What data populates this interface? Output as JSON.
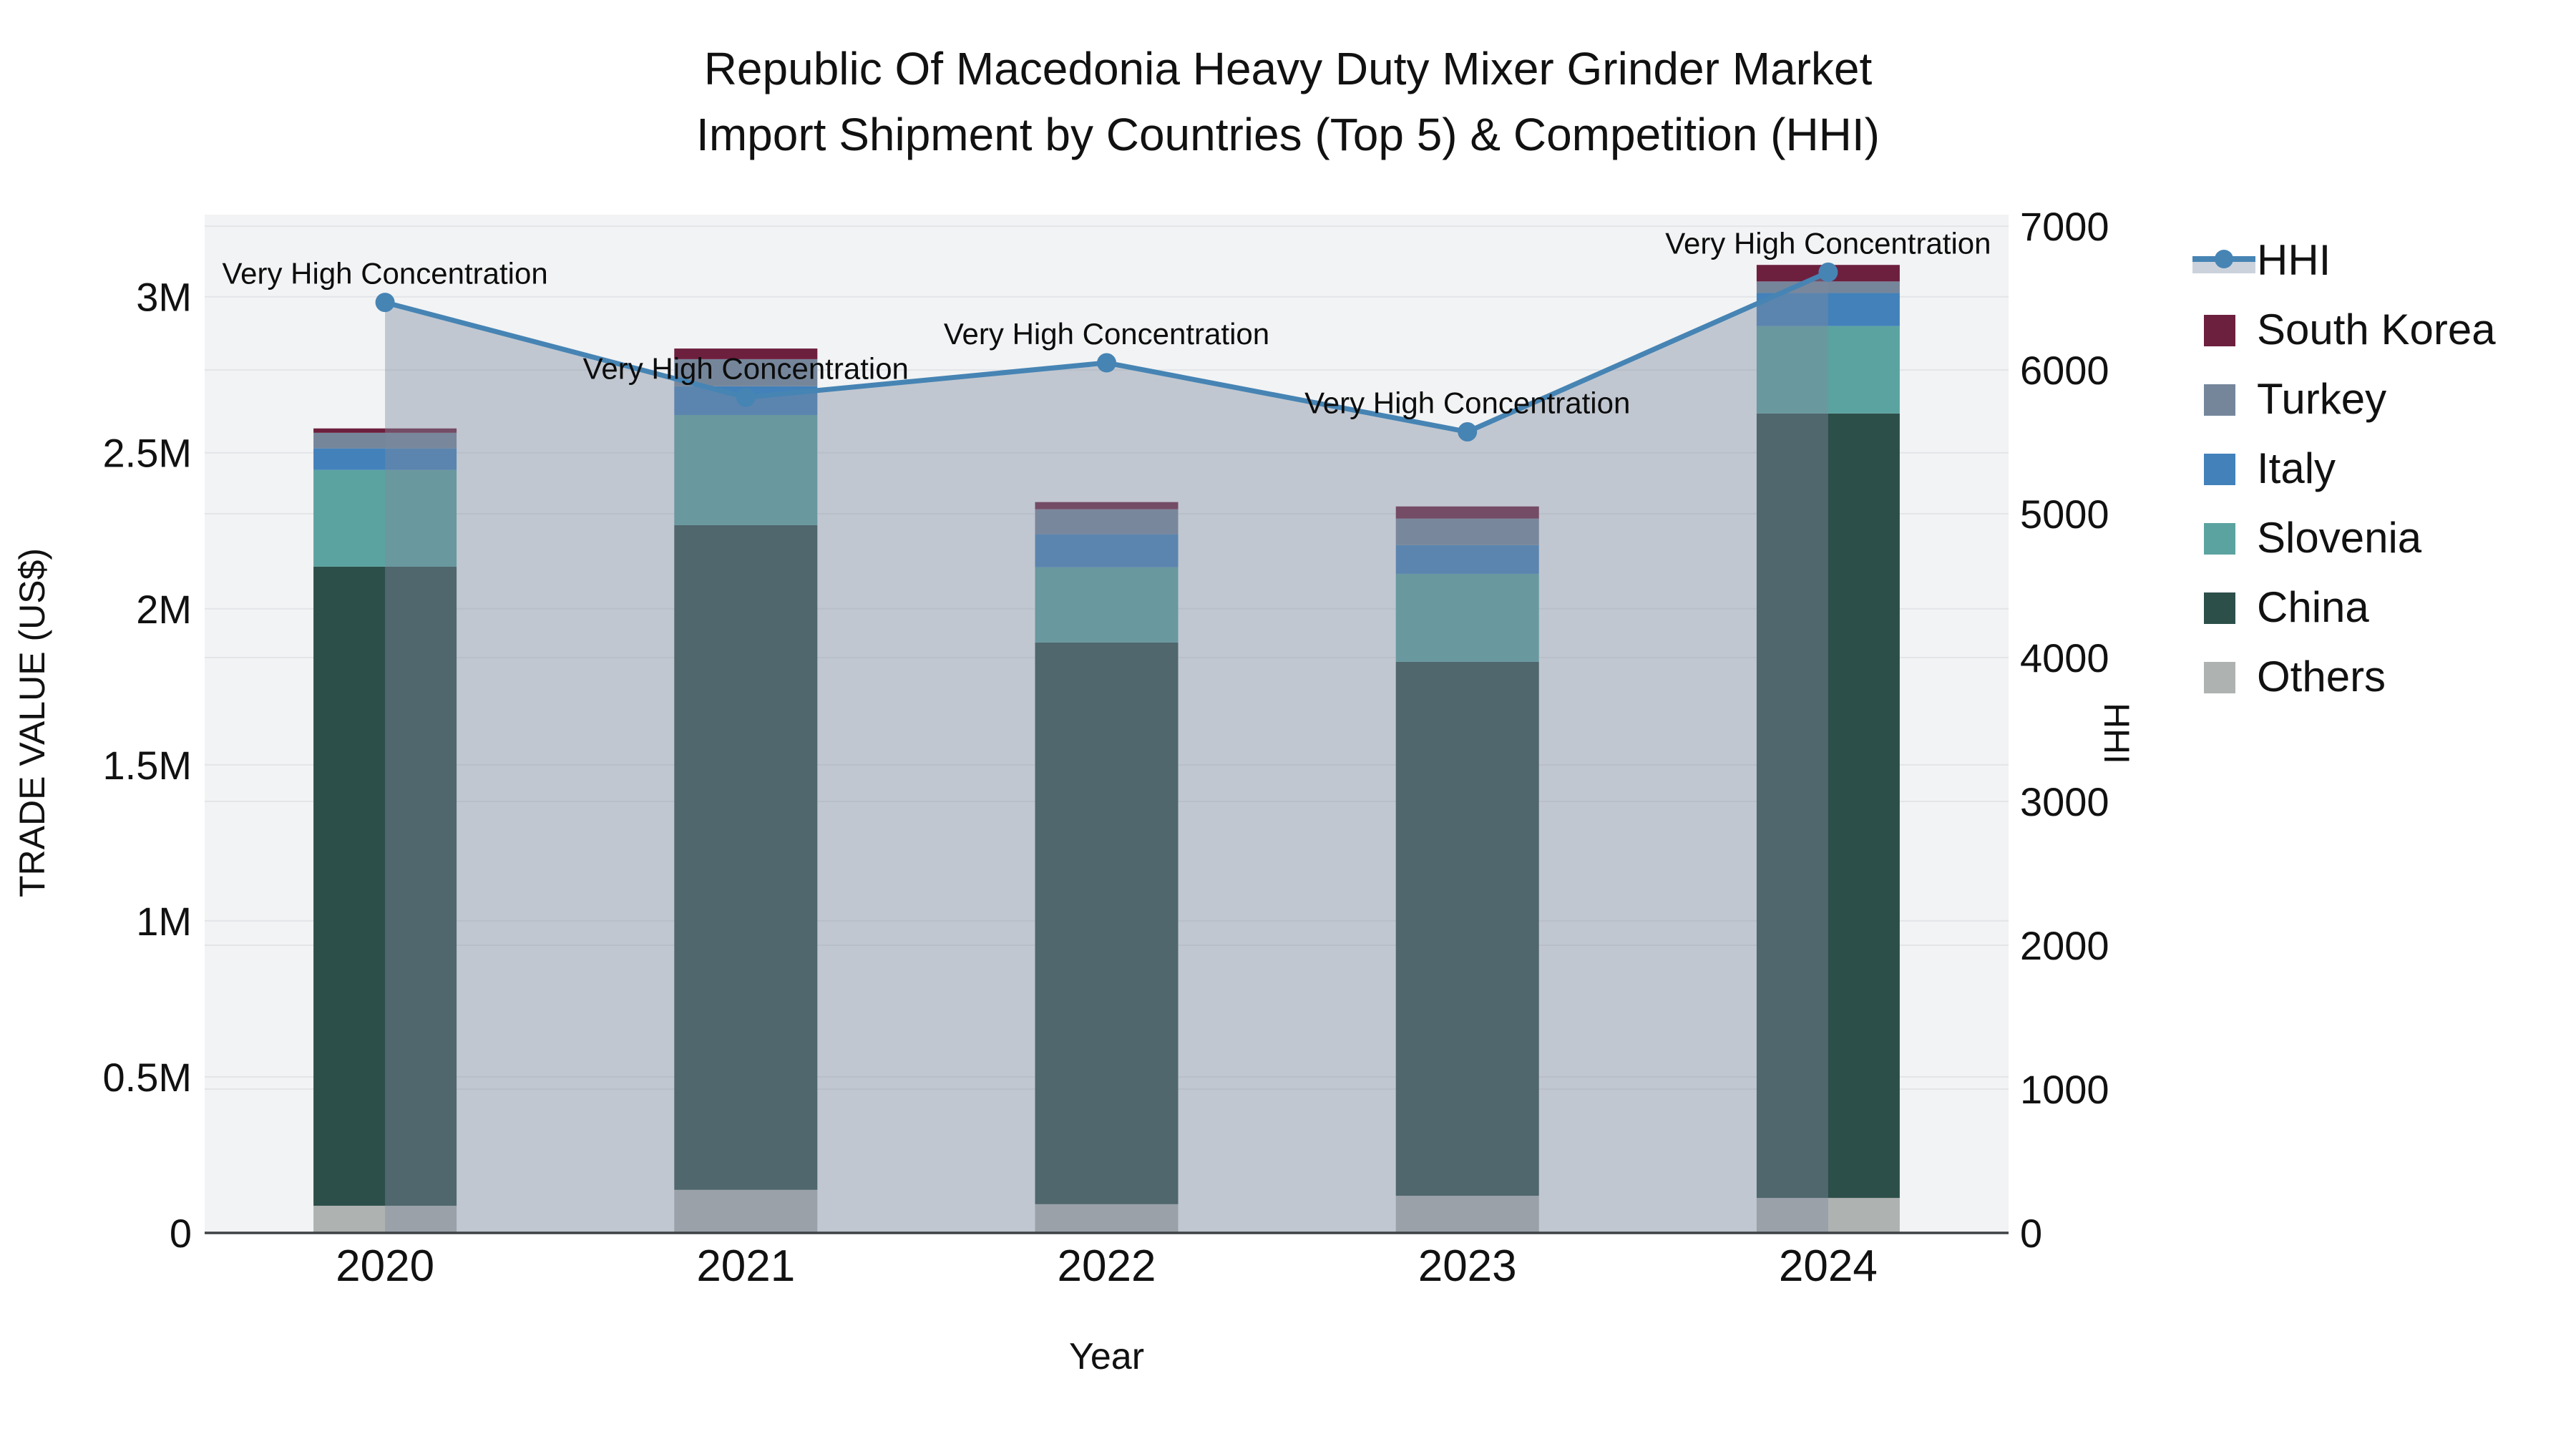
{
  "title": {
    "line1": "Republic Of Macedonia Heavy Duty Mixer Grinder Market",
    "line2": "Import Shipment by Countries (Top 5) & Competition (HHI)"
  },
  "colors": {
    "hhi_line": "#4684b4",
    "area_fill": "rgba(127,139,158,0.42)",
    "plot_bg": "#f2f3f4",
    "grid": "#e3e5e8",
    "axis_line": "#3f4245",
    "text": "#111111"
  },
  "chart_data": {
    "type": "combo",
    "categories": [
      "2020",
      "2021",
      "2022",
      "2023",
      "2024"
    ],
    "xlabel": "Year",
    "y_left": {
      "title": "TRADE VALUE (US$)",
      "unit": "US$",
      "tick_labels": [
        "0",
        "0.5M",
        "1M",
        "1.5M",
        "2M",
        "2.5M",
        "3M"
      ],
      "tick_values_usd": [
        0,
        500000,
        1000000,
        1500000,
        2000000,
        2500000,
        3000000
      ],
      "range_usd": [
        0,
        3263000
      ],
      "grid": true
    },
    "y_right": {
      "title": "HHI",
      "tick_labels": [
        "0",
        "1000",
        "2000",
        "3000",
        "4000",
        "5000",
        "6000",
        "7000"
      ],
      "tick_values": [
        0,
        1000,
        2000,
        3000,
        4000,
        5000,
        6000,
        7000
      ],
      "range": [
        0,
        7080
      ],
      "grid": true
    },
    "series": [
      {
        "name": "Others",
        "color": "#aeb2b1",
        "values": [
          87000,
          138000,
          92000,
          119000,
          112000
        ]
      },
      {
        "name": "China",
        "color": "#2d4f4a",
        "values": [
          2048000,
          2130000,
          1800000,
          1711000,
          2514000
        ]
      },
      {
        "name": "Slovenia",
        "color": "#5ba3a0",
        "values": [
          310000,
          353000,
          241000,
          282000,
          280000
        ]
      },
      {
        "name": "Italy",
        "color": "#4281ba",
        "values": [
          69000,
          92000,
          106000,
          92000,
          106000
        ]
      },
      {
        "name": "Turkey",
        "color": "#75869b",
        "values": [
          50000,
          87000,
          80000,
          85000,
          37000
        ]
      },
      {
        "name": "South Korea",
        "color": "#6d1f3e",
        "values": [
          14000,
          34000,
          23000,
          39000,
          53000
        ]
      }
    ],
    "line_series": {
      "name": "HHI",
      "values": [
        6470,
        5810,
        6050,
        5570,
        6680
      ]
    },
    "annotations": [
      "Very High Concentration",
      "Very High Concentration",
      "Very High Concentration",
      "Very High Concentration",
      "Very High Concentration"
    ],
    "legend": [
      "HHI",
      "South Korea",
      "Turkey",
      "Italy",
      "Slovenia",
      "China",
      "Others"
    ],
    "legend_position": "right"
  }
}
